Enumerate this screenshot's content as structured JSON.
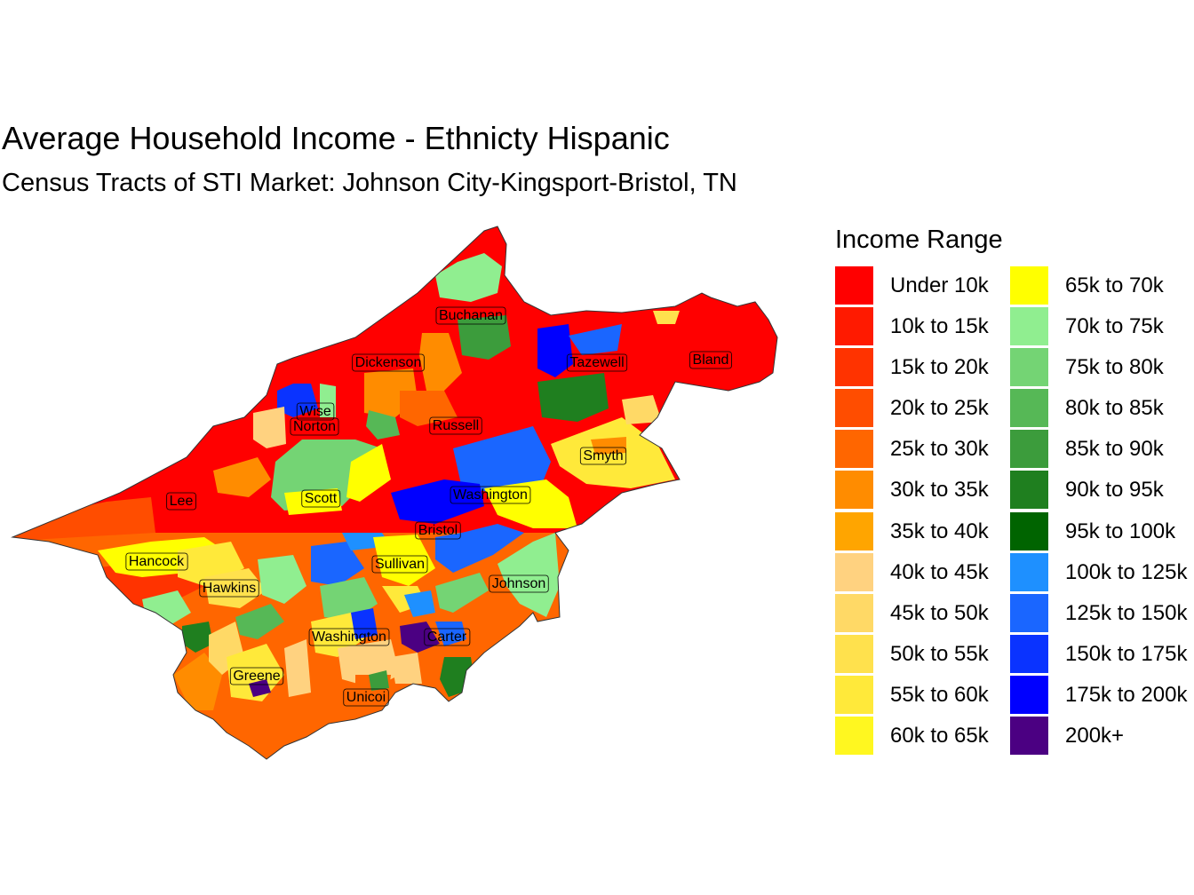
{
  "title": "Average Household Income - Ethnicty Hispanic",
  "subtitle": "Census Tracts of STI Market: Johnson City-Kingsport-Bristol, TN",
  "legend": {
    "title": "Income Range",
    "items": [
      {
        "label": "Under 10k",
        "color": "#ff0000"
      },
      {
        "label": "10k to 15k",
        "color": "#ff1a00"
      },
      {
        "label": "15k to 20k",
        "color": "#ff3300"
      },
      {
        "label": "20k to 25k",
        "color": "#ff4d00"
      },
      {
        "label": "25k to 30k",
        "color": "#ff6600"
      },
      {
        "label": "30k to 35k",
        "color": "#ff8c00"
      },
      {
        "label": "35k to 40k",
        "color": "#ffa500"
      },
      {
        "label": "40k to 45k",
        "color": "#ffd280"
      },
      {
        "label": "45k to 50k",
        "color": "#ffd966"
      },
      {
        "label": "50k to 55k",
        "color": "#ffe14d"
      },
      {
        "label": "55k to 60k",
        "color": "#ffe93a"
      },
      {
        "label": "60k to 65k",
        "color": "#fff720"
      },
      {
        "label": "65k to 70k",
        "color": "#ffff00"
      },
      {
        "label": "70k to 75k",
        "color": "#90ee90"
      },
      {
        "label": "75k to 80k",
        "color": "#74d474"
      },
      {
        "label": "80k to 85k",
        "color": "#56b856"
      },
      {
        "label": "85k to 90k",
        "color": "#3c9c3c"
      },
      {
        "label": "90k to 95k",
        "color": "#1f7f1f"
      },
      {
        "label": "95k to 100k",
        "color": "#006400"
      },
      {
        "label": "100k to 125k",
        "color": "#1e90ff"
      },
      {
        "label": "125k to 150k",
        "color": "#1a66ff"
      },
      {
        "label": "150k to 175k",
        "color": "#0a33ff"
      },
      {
        "label": "175k to 200k",
        "color": "#0000ff"
      },
      {
        "label": "200k+",
        "color": "#4b0082"
      }
    ]
  },
  "counties": [
    "Buchanan",
    "Dickenson",
    "Tazewell",
    "Bland",
    "Wise",
    "Norton",
    "Russell",
    "Smyth",
    "Lee",
    "Scott",
    "Washington",
    "Bristol",
    "Hancock",
    "Sullivan",
    "Johnson",
    "Hawkins",
    "Washington",
    "Carter",
    "Greene",
    "Unicoi"
  ]
}
